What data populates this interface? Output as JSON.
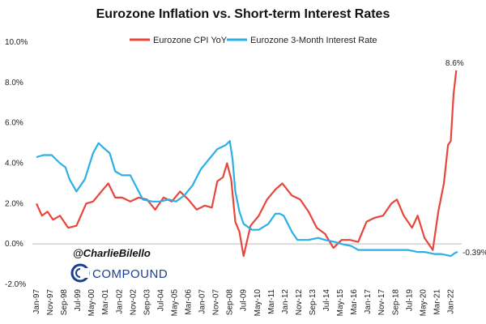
{
  "chart_data": {
    "type": "line",
    "title": "Eurozone Inflation vs. Short-term Interest Rates",
    "ylim": [
      -2,
      10
    ],
    "yticks": [
      "-2.0%",
      "0.0%",
      "2.0%",
      "4.0%",
      "6.0%",
      "8.0%",
      "10.0%"
    ],
    "ytick_values": [
      -2,
      0,
      2,
      4,
      6,
      8,
      10
    ],
    "xrange": [
      "1997-01",
      "2022-06"
    ],
    "xticks": [
      "Jan-97",
      "Nov-97",
      "Sep-98",
      "Jul-99",
      "May-00",
      "Mar-01",
      "Jan-02",
      "Nov-02",
      "Sep-03",
      "Jul-04",
      "May-05",
      "Mar-06",
      "Jan-07",
      "Nov-07",
      "Sep-08",
      "Jul-09",
      "May-10",
      "Mar-11",
      "Jan-12",
      "Nov-12",
      "Sep-13",
      "Jul-14",
      "May-15",
      "Mar-16",
      "Jan-17",
      "Nov-17",
      "Sep-18",
      "Jul-19",
      "May-20",
      "Mar-21",
      "Jan-22"
    ],
    "grid": false,
    "legend_position": "top",
    "series": [
      {
        "name": "Eurozone CPI YoY",
        "color": "#e8453c",
        "x": [
          "1997-01",
          "1997-05",
          "1997-09",
          "1998-01",
          "1998-06",
          "1998-12",
          "1999-06",
          "2000-01",
          "2000-06",
          "2000-12",
          "2001-05",
          "2001-10",
          "2002-03",
          "2002-09",
          "2003-03",
          "2003-09",
          "2004-03",
          "2004-09",
          "2005-03",
          "2005-09",
          "2006-03",
          "2006-09",
          "2007-03",
          "2007-08",
          "2007-12",
          "2008-04",
          "2008-07",
          "2008-10",
          "2009-01",
          "2009-04",
          "2009-07",
          "2009-12",
          "2010-06",
          "2010-12",
          "2011-06",
          "2011-11",
          "2012-06",
          "2012-12",
          "2013-06",
          "2013-12",
          "2014-06",
          "2014-12",
          "2015-06",
          "2015-12",
          "2016-06",
          "2016-12",
          "2017-06",
          "2017-12",
          "2018-06",
          "2018-10",
          "2019-03",
          "2019-09",
          "2020-01",
          "2020-06",
          "2020-12",
          "2021-04",
          "2021-08",
          "2021-11",
          "2022-01",
          "2022-03",
          "2022-05"
        ],
        "values": [
          2.0,
          1.4,
          1.6,
          1.2,
          1.4,
          0.8,
          0.9,
          2.0,
          2.1,
          2.6,
          3.0,
          2.3,
          2.3,
          2.1,
          2.3,
          2.2,
          1.7,
          2.3,
          2.1,
          2.6,
          2.2,
          1.7,
          1.9,
          1.8,
          3.1,
          3.3,
          4.0,
          3.2,
          1.1,
          0.6,
          -0.6,
          0.9,
          1.4,
          2.2,
          2.7,
          3.0,
          2.4,
          2.2,
          1.6,
          0.8,
          0.5,
          -0.2,
          0.2,
          0.2,
          0.1,
          1.1,
          1.3,
          1.4,
          2.0,
          2.2,
          1.4,
          0.8,
          1.4,
          0.3,
          -0.3,
          1.6,
          3.0,
          4.9,
          5.1,
          7.4,
          8.6
        ]
      },
      {
        "name": "Eurozone 3-Month Interest Rate",
        "color": "#2ab0e4",
        "x": [
          "1997-01",
          "1997-06",
          "1997-12",
          "1998-06",
          "1998-10",
          "1999-01",
          "1999-06",
          "1999-12",
          "2000-06",
          "2000-10",
          "2001-01",
          "2001-06",
          "2001-10",
          "2002-03",
          "2002-09",
          "2003-03",
          "2003-06",
          "2004-01",
          "2004-06",
          "2005-01",
          "2005-06",
          "2005-12",
          "2006-06",
          "2006-12",
          "2007-06",
          "2007-12",
          "2008-06",
          "2008-09",
          "2008-11",
          "2009-01",
          "2009-04",
          "2009-07",
          "2010-01",
          "2010-06",
          "2011-01",
          "2011-06",
          "2011-09",
          "2011-12",
          "2012-06",
          "2012-10",
          "2013-06",
          "2014-01",
          "2014-06",
          "2015-01",
          "2015-06",
          "2016-01",
          "2016-06",
          "2017-01",
          "2018-01",
          "2019-01",
          "2019-06",
          "2020-01",
          "2020-06",
          "2021-01",
          "2021-06",
          "2022-01",
          "2022-04",
          "2022-06"
        ],
        "values": [
          4.3,
          4.4,
          4.4,
          4.0,
          3.8,
          3.2,
          2.6,
          3.2,
          4.5,
          5.0,
          4.8,
          4.5,
          3.6,
          3.4,
          3.4,
          2.6,
          2.2,
          2.1,
          2.1,
          2.2,
          2.1,
          2.4,
          2.9,
          3.7,
          4.2,
          4.7,
          4.9,
          5.1,
          4.2,
          2.6,
          1.6,
          1.0,
          0.7,
          0.7,
          1.0,
          1.5,
          1.5,
          1.4,
          0.6,
          0.2,
          0.2,
          0.3,
          0.2,
          0.1,
          0.0,
          -0.1,
          -0.3,
          -0.3,
          -0.3,
          -0.3,
          -0.3,
          -0.4,
          -0.4,
          -0.5,
          -0.5,
          -0.6,
          -0.45,
          -0.39
        ]
      }
    ],
    "annotations": [
      {
        "text": "8.6%",
        "series": 0
      },
      {
        "text": "-0.39%",
        "series": 1
      }
    ]
  },
  "watermark": {
    "handle": "@CharlieBilello",
    "brand": "COMPOUND"
  },
  "colors": {
    "cpi": "#e8453c",
    "rate": "#2ab0e4",
    "brand": "#1a3f8f"
  }
}
